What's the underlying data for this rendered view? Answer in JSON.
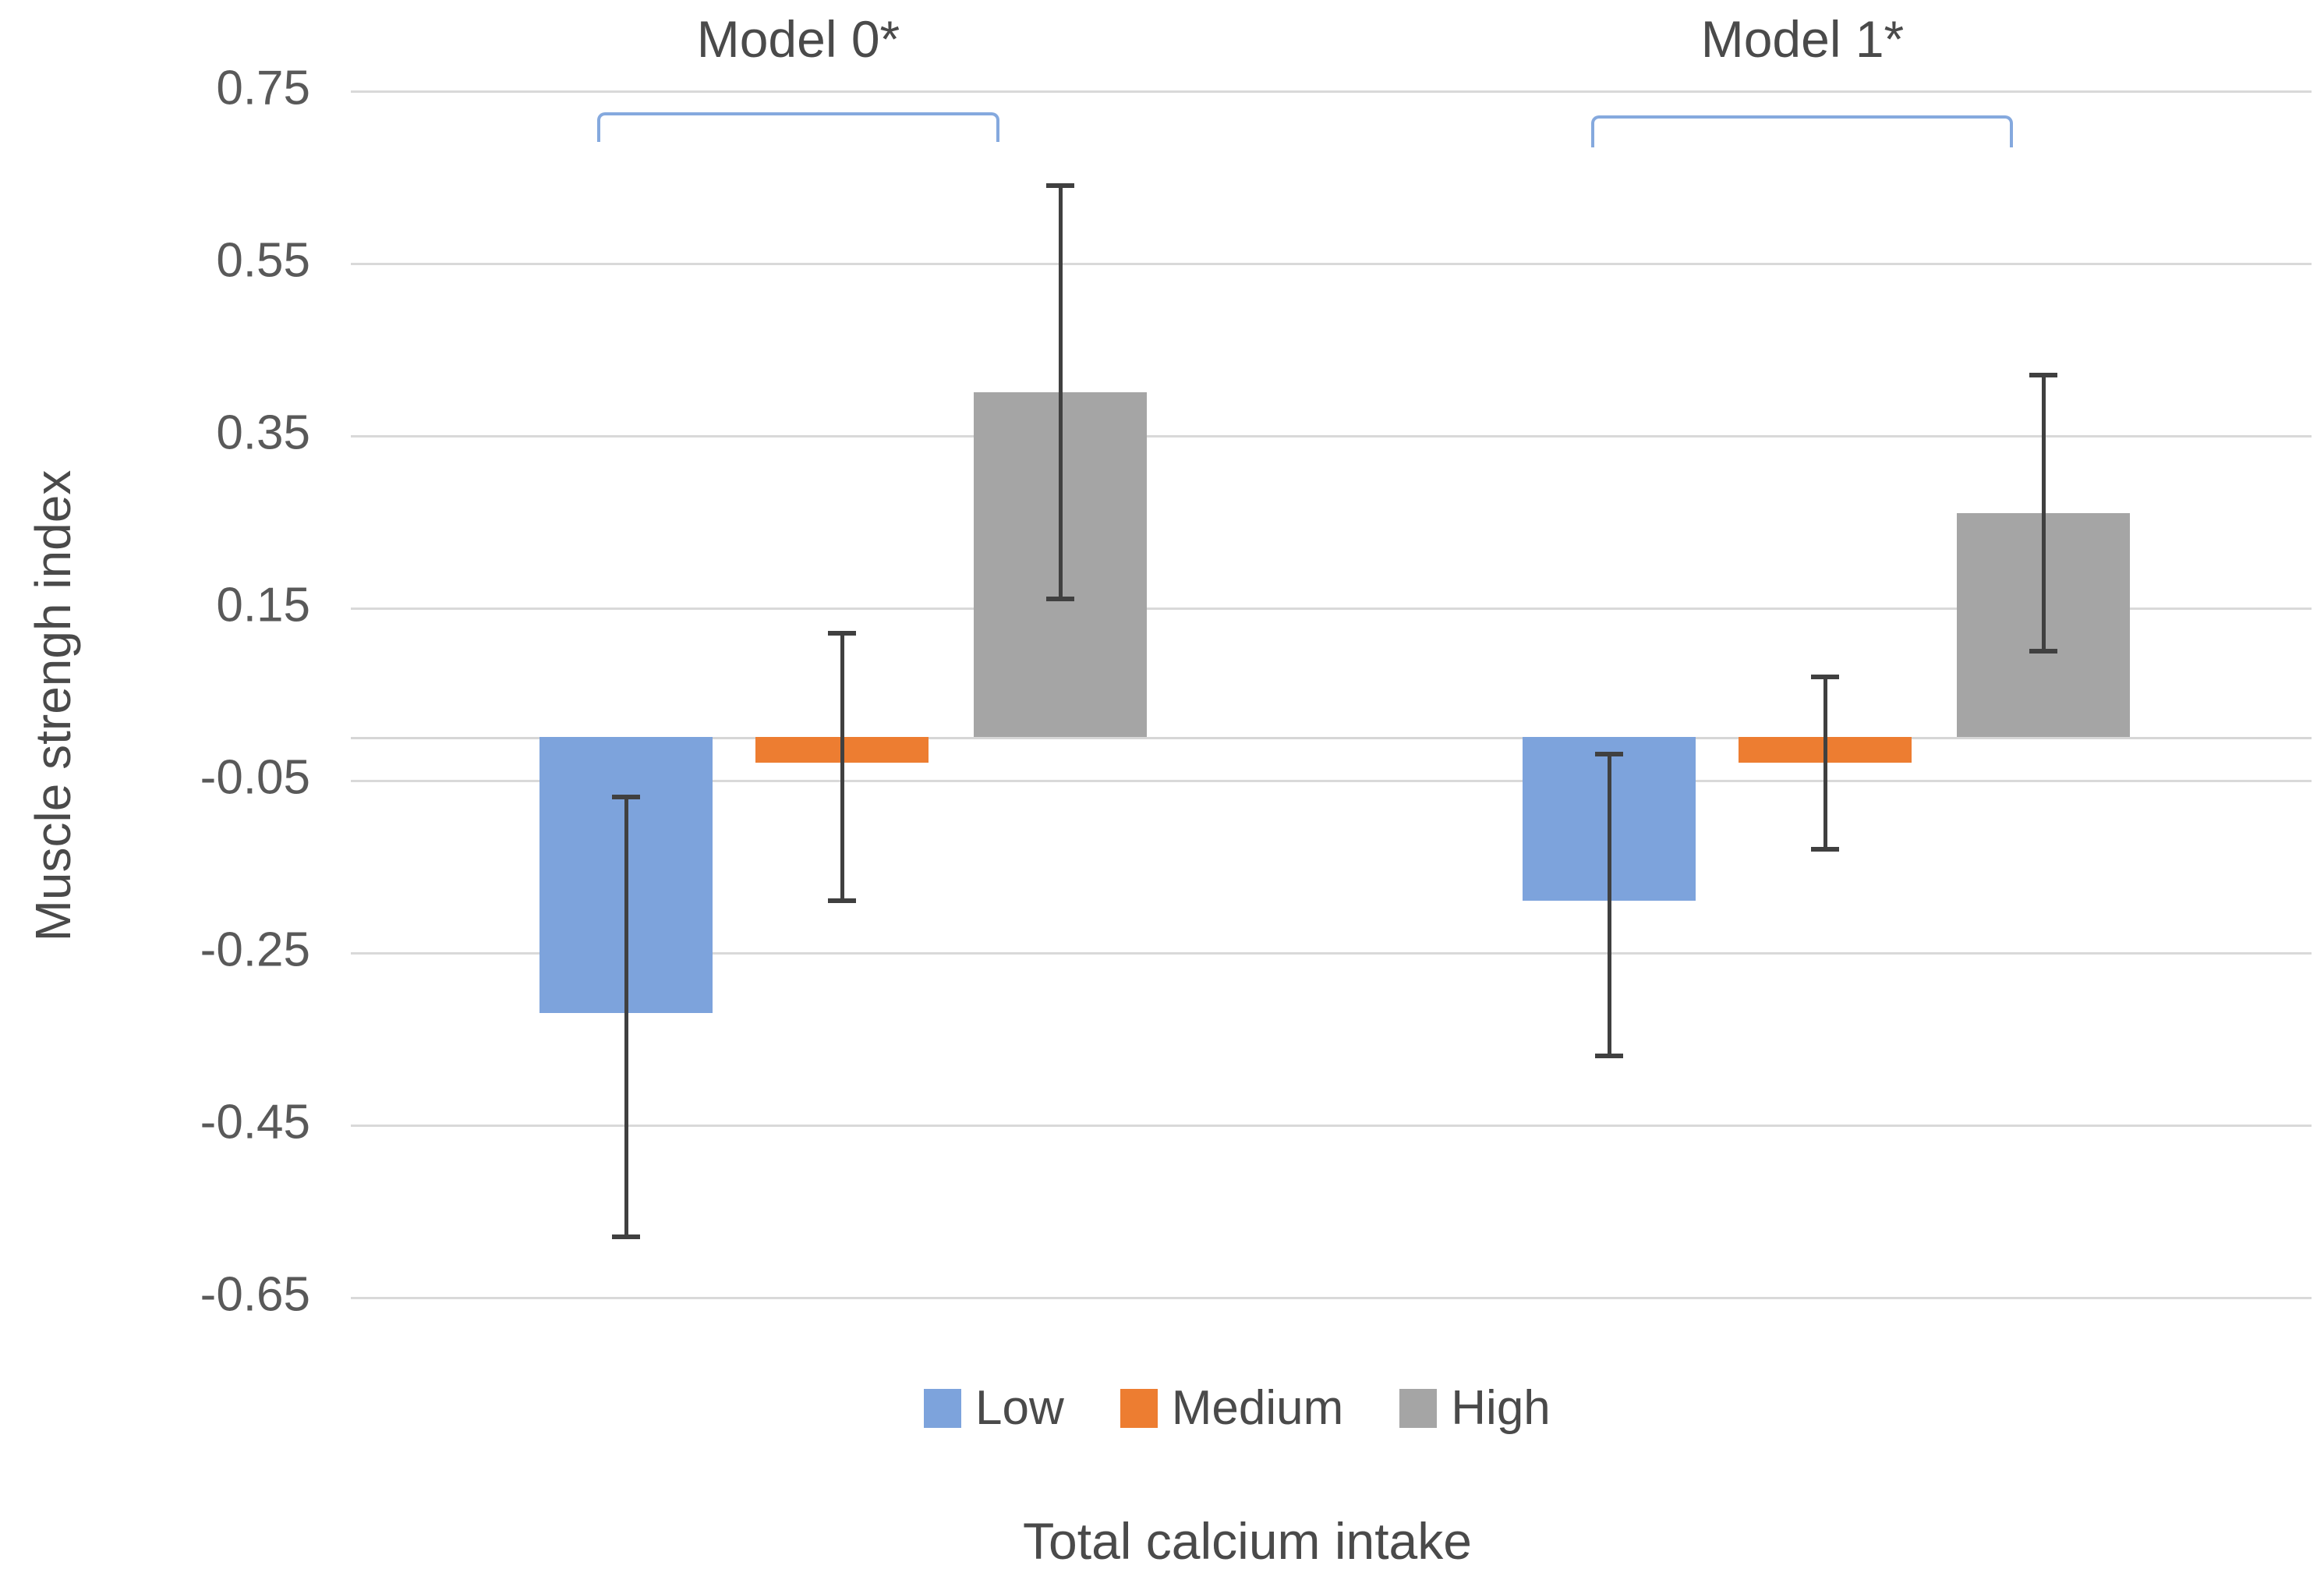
{
  "chart_data": {
    "type": "bar",
    "title": "",
    "categories": [
      "Model 0*",
      "Model 1*"
    ],
    "series": [
      {
        "name": "Low",
        "color": "#7DA3DC",
        "values": [
          -0.32,
          -0.19
        ],
        "ci_high": [
          -0.07,
          -0.02
        ],
        "ci_low": [
          -0.58,
          -0.37
        ]
      },
      {
        "name": "Medium",
        "color": "#ED7D31",
        "values": [
          -0.03,
          -0.03
        ],
        "ci_high": [
          0.12,
          0.07
        ],
        "ci_low": [
          -0.19,
          -0.13
        ]
      },
      {
        "name": "High",
        "color": "#A5A5A5",
        "values": [
          0.4,
          0.26
        ],
        "ci_high": [
          0.64,
          0.42
        ],
        "ci_low": [
          0.16,
          0.1
        ]
      }
    ],
    "ylabel": "Muscle strengh index",
    "xlabel": "Total calcium intake",
    "y_tick_labels": [
      "0.75",
      "0.55",
      "0.35",
      "0.15",
      "-0.05",
      "-0.25",
      "-0.45",
      "-0.65"
    ],
    "ylim": [
      -0.78,
      0.9
    ],
    "grid": true,
    "legend": [
      "Low",
      "Medium",
      "High"
    ],
    "legend_position": "bottom",
    "error_bars": true,
    "group_bracket_labels": [
      "Model 0*",
      "Model 1*"
    ]
  },
  "colors": {
    "gridline": "#D9D9D9",
    "zero_line": "#D6D6D6",
    "error_bar": "#404040",
    "bracket": "#85A9DE",
    "tick_text": "#595959",
    "label_text": "#4a4a4a"
  }
}
